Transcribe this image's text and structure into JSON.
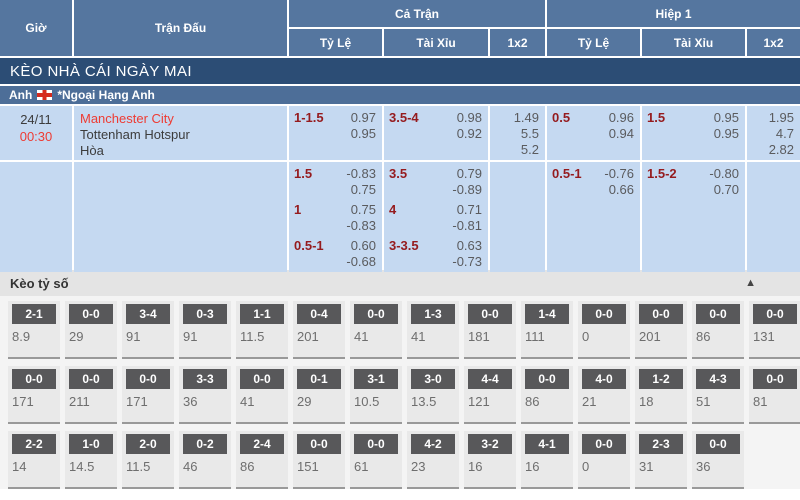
{
  "header": {
    "col_time": "Giờ",
    "col_match": "Trận Đấu",
    "group_full": "Cả Trận",
    "group_half": "Hiệp 1",
    "sub_handicap": "Tỷ Lệ",
    "sub_overunder": "Tài Xỉu",
    "sub_1x2": "1x2"
  },
  "section_title": "KÈO NHÀ CÁI NGÀY MAI",
  "league": {
    "country": "Anh",
    "flag_icon": "england-flag",
    "name": "*Ngoại Hạng Anh"
  },
  "match": {
    "date": "24/11",
    "time": "00:30",
    "home": "Manchester City",
    "away": "Tottenham Hotspur",
    "draw_label": "Hòa",
    "rows": [
      {
        "ft_hdp": {
          "line": "1-1.5",
          "odds": [
            "0.97",
            "0.95"
          ]
        },
        "ft_ou": {
          "line": "3.5-4",
          "odds": [
            "0.98",
            "0.92"
          ]
        },
        "ft_1x2": [
          "1.49",
          "5.5",
          "5.2"
        ],
        "h1_hdp": {
          "line": "0.5",
          "odds": [
            "0.96",
            "0.94"
          ]
        },
        "h1_ou": {
          "line": "1.5",
          "odds": [
            "0.95",
            "0.95"
          ]
        },
        "h1_1x2": [
          "1.95",
          "4.7",
          "2.82"
        ]
      },
      {
        "ft_hdp": {
          "line": "1.5",
          "odds": [
            "-0.83",
            "0.75"
          ]
        },
        "ft_ou": {
          "line": "3.5",
          "odds": [
            "0.79",
            "-0.89"
          ]
        },
        "h1_hdp": {
          "line": "0.5-1",
          "odds": [
            "-0.76",
            "0.66"
          ]
        },
        "h1_ou": {
          "line": "1.5-2",
          "odds": [
            "-0.80",
            "0.70"
          ]
        }
      },
      {
        "ft_hdp": {
          "line": "1",
          "odds": [
            "0.75",
            "-0.83"
          ]
        },
        "ft_ou": {
          "line": "4",
          "odds": [
            "0.71",
            "-0.81"
          ]
        }
      },
      {
        "ft_hdp": {
          "line": "0.5-1",
          "odds": [
            "0.60",
            "-0.68"
          ]
        },
        "ft_ou": {
          "line": "3-3.5",
          "odds": [
            "0.63",
            "-0.73"
          ]
        }
      }
    ]
  },
  "correct_score": {
    "title": "Kèo tỷ số",
    "collapse_icon": "triangle-up",
    "rows": [
      [
        {
          "score": "2-1",
          "odds": "8.9"
        },
        {
          "score": "0-0",
          "odds": "29"
        },
        {
          "score": "3-4",
          "odds": "91"
        },
        {
          "score": "0-3",
          "odds": "91"
        },
        {
          "score": "1-1",
          "odds": "11.5"
        },
        {
          "score": "0-4",
          "odds": "201"
        },
        {
          "score": "0-0",
          "odds": "41"
        },
        {
          "score": "1-3",
          "odds": "41"
        },
        {
          "score": "0-0",
          "odds": "181"
        },
        {
          "score": "1-4",
          "odds": "111"
        },
        {
          "score": "0-0",
          "odds": "0"
        },
        {
          "score": "0-0",
          "odds": "201"
        },
        {
          "score": "0-0",
          "odds": "86"
        },
        {
          "score": "0-0",
          "odds": "131"
        }
      ],
      [
        {
          "score": "0-0",
          "odds": "171"
        },
        {
          "score": "0-0",
          "odds": "211"
        },
        {
          "score": "0-0",
          "odds": "171"
        },
        {
          "score": "3-3",
          "odds": "36"
        },
        {
          "score": "0-0",
          "odds": "41"
        },
        {
          "score": "0-1",
          "odds": "29"
        },
        {
          "score": "3-1",
          "odds": "10.5"
        },
        {
          "score": "3-0",
          "odds": "13.5"
        },
        {
          "score": "4-4",
          "odds": "121"
        },
        {
          "score": "0-0",
          "odds": "86"
        },
        {
          "score": "4-0",
          "odds": "21"
        },
        {
          "score": "1-2",
          "odds": "18"
        },
        {
          "score": "4-3",
          "odds": "51"
        },
        {
          "score": "0-0",
          "odds": "81"
        }
      ],
      [
        {
          "score": "2-2",
          "odds": "14"
        },
        {
          "score": "1-0",
          "odds": "14.5"
        },
        {
          "score": "2-0",
          "odds": "11.5"
        },
        {
          "score": "0-2",
          "odds": "46"
        },
        {
          "score": "2-4",
          "odds": "86"
        },
        {
          "score": "0-0",
          "odds": "151"
        },
        {
          "score": "0-0",
          "odds": "61"
        },
        {
          "score": "4-2",
          "odds": "23"
        },
        {
          "score": "3-2",
          "odds": "16"
        },
        {
          "score": "4-1",
          "odds": "16"
        },
        {
          "score": "0-0",
          "odds": "0"
        },
        {
          "score": "2-3",
          "odds": "31"
        },
        {
          "score": "0-0",
          "odds": "36"
        },
        null
      ]
    ]
  }
}
